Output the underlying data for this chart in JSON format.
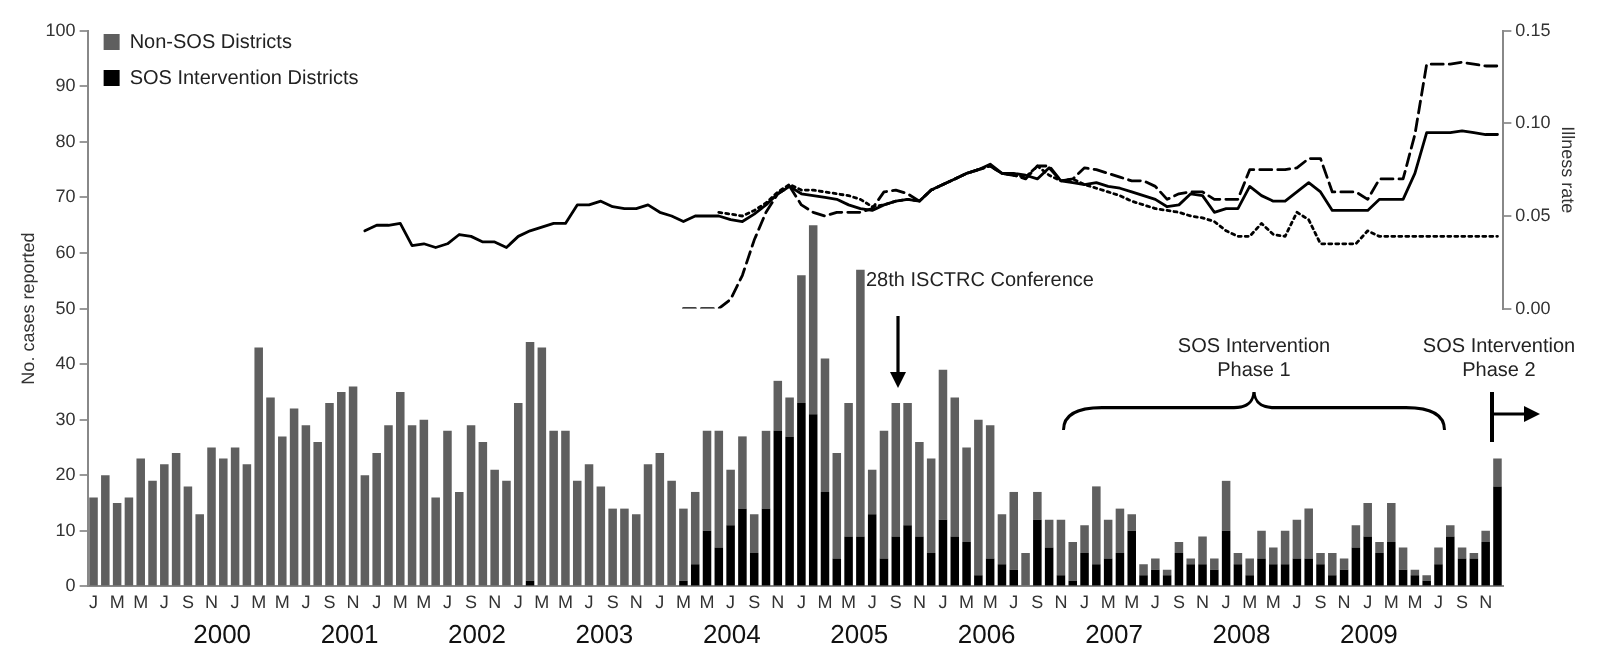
{
  "chart_data": {
    "type": "bar",
    "stacked": true,
    "ylabel": "No. cases reported",
    "y2label": "Illness rate",
    "categories": [
      "J",
      null,
      "M",
      null,
      "M",
      null,
      "J",
      null,
      "S",
      null,
      "N",
      null,
      "J",
      null,
      "M",
      null,
      "M",
      null,
      "J",
      null,
      "S",
      null,
      "N",
      null,
      "J",
      null,
      "M",
      null,
      "M",
      null,
      "J",
      null,
      "S",
      null,
      "N",
      null,
      "J",
      null,
      "M",
      null,
      "M",
      null,
      "J",
      null,
      "S",
      null,
      "N",
      null,
      "J",
      null,
      "M",
      null,
      "M",
      null,
      "J",
      null,
      "S",
      null,
      "N",
      null,
      "J",
      null,
      "M",
      null,
      "M",
      null,
      "J",
      null,
      "S",
      null,
      "N",
      null,
      "J",
      null,
      "M",
      null,
      "M",
      null,
      "J",
      null,
      "S",
      null,
      "N",
      null,
      "J",
      null,
      "M",
      null,
      "M",
      null,
      "J",
      null,
      "S",
      null,
      "N",
      null,
      "J",
      null,
      "M",
      null,
      "M",
      null,
      "J",
      null,
      "S",
      null,
      "N",
      null,
      "J",
      null,
      "M",
      null,
      "M",
      null,
      "J",
      null,
      "S",
      null,
      "N",
      null
    ],
    "ylim": [
      0,
      100
    ],
    "yticks": [
      0,
      10,
      20,
      30,
      40,
      50,
      60,
      70,
      80,
      90,
      100
    ],
    "y2lim": [
      0,
      0.15
    ],
    "y2ticks": [
      {
        "value": 0,
        "label": "0.00"
      },
      {
        "value": 0.05,
        "label": "0.05"
      },
      {
        "value": 0.1,
        "label": "0.10"
      },
      {
        "value": 0.15,
        "label": "0.15"
      }
    ],
    "x2lim": [
      2000,
      2010
    ],
    "x2ticks": [
      {
        "value": 2000.5,
        "label": "2000"
      },
      {
        "value": 2001.5,
        "label": "2001"
      },
      {
        "value": 2002.5,
        "label": "2002"
      },
      {
        "value": 2003.5,
        "label": "2003"
      },
      {
        "value": 2004.5,
        "label": "2004"
      },
      {
        "value": 2005.5,
        "label": "2005"
      },
      {
        "value": 2006.5,
        "label": "2006"
      },
      {
        "value": 2007.5,
        "label": "2007"
      },
      {
        "value": 2008.5,
        "label": "2008"
      },
      {
        "value": 2009.5,
        "label": "2009"
      }
    ],
    "legend": "top left",
    "grid": false,
    "marker": "none",
    "annotations": [
      "28th ISCTRC Conference",
      "SOS Intervention Phase 1",
      "SOS Intervention Phase 2"
    ],
    "series": [
      {
        "name": "SOS Intervention Districts",
        "color": "#000000",
        "values": [
          0,
          0,
          0,
          0,
          0,
          0,
          0,
          0,
          0,
          0,
          0,
          0,
          0,
          0,
          0,
          0,
          0,
          0,
          0,
          0,
          0,
          0,
          0,
          0,
          0,
          0,
          0,
          0,
          0,
          0,
          0,
          0,
          0,
          0,
          0,
          0,
          0,
          1,
          0,
          0,
          0,
          0,
          0,
          0,
          0,
          0,
          0,
          0,
          0,
          0,
          1,
          4,
          10,
          7,
          11,
          14,
          6,
          14,
          28,
          27,
          33,
          31,
          17,
          5,
          9,
          9,
          13,
          5,
          9,
          11,
          9,
          6,
          12,
          9,
          8,
          2,
          5,
          4,
          3,
          0,
          12,
          7,
          2,
          1,
          6,
          4,
          5,
          6,
          10,
          2,
          3,
          2,
          6,
          4,
          4,
          3,
          10,
          4,
          2,
          5,
          4,
          4,
          5,
          5,
          4,
          2,
          3,
          7,
          9,
          6,
          8,
          3,
          2,
          1,
          4,
          9,
          5,
          5,
          8,
          18
        ]
      },
      {
        "name": "Non-SOS Districts",
        "color": "#5f5f5f",
        "values": [
          16,
          20,
          15,
          16,
          23,
          19,
          22,
          24,
          18,
          13,
          25,
          23,
          25,
          22,
          43,
          34,
          27,
          32,
          29,
          26,
          33,
          35,
          36,
          20,
          24,
          29,
          35,
          29,
          30,
          16,
          28,
          17,
          29,
          26,
          21,
          19,
          33,
          43,
          43,
          28,
          28,
          19,
          22,
          18,
          14,
          14,
          13,
          22,
          24,
          19,
          13,
          13,
          18,
          21,
          10,
          13,
          7,
          14,
          9,
          7,
          23,
          34,
          24,
          19,
          24,
          48,
          8,
          23,
          24,
          22,
          17,
          17,
          27,
          25,
          17,
          28,
          24,
          9,
          14,
          6,
          5,
          5,
          10,
          7,
          5,
          14,
          7,
          8,
          3,
          2,
          2,
          1,
          2,
          1,
          5,
          2,
          9,
          2,
          3,
          5,
          3,
          6,
          7,
          9,
          2,
          4,
          2,
          4,
          6,
          2,
          7,
          4,
          1,
          1,
          3,
          2,
          2,
          1,
          2,
          5
        ]
      },
      {
        "type": "line",
        "axis": "y2",
        "color": "#000000",
        "line_style": "solid",
        "values": [
          null,
          null,
          null,
          null,
          null,
          null,
          null,
          null,
          null,
          null,
          null,
          null,
          null,
          null,
          null,
          null,
          null,
          null,
          null,
          null,
          null,
          null,
          null,
          0.042,
          0.045,
          0.045,
          0.046,
          0.034,
          0.035,
          0.033,
          0.035,
          0.04,
          0.039,
          0.036,
          0.036,
          0.033,
          0.039,
          0.042,
          0.044,
          0.046,
          0.046,
          0.056,
          0.056,
          0.058,
          0.055,
          0.054,
          0.054,
          0.056,
          0.052,
          0.05,
          0.047,
          0.05,
          0.05,
          0.05,
          0.048,
          0.047,
          0.051,
          0.056,
          0.062,
          0.066,
          0.062,
          0.061,
          0.06,
          0.059,
          0.056,
          0.054,
          0.053,
          0.056,
          0.058,
          0.059,
          0.058,
          0.064,
          0.067,
          0.07,
          0.073,
          0.075,
          0.078,
          0.073,
          0.073,
          0.072,
          0.07,
          0.076,
          0.069,
          0.068,
          0.067,
          0.068,
          0.066,
          0.065,
          0.063,
          0.061,
          0.059,
          0.055,
          0.056,
          0.062,
          0.061,
          0.052,
          0.054,
          0.054,
          0.066,
          0.061,
          0.058,
          0.058,
          0.063,
          0.068,
          0.063,
          0.053,
          0.053,
          0.053,
          0.053,
          0.059,
          0.059,
          0.059,
          0.073,
          0.095,
          0.095,
          0.095,
          0.096,
          0.095,
          0.094,
          0.094
        ]
      },
      {
        "type": "line",
        "axis": "y2",
        "color": "#000000",
        "line_style": "dashed",
        "values": [
          null,
          null,
          null,
          null,
          null,
          null,
          null,
          null,
          null,
          null,
          null,
          null,
          null,
          null,
          null,
          null,
          null,
          null,
          null,
          null,
          null,
          null,
          null,
          null,
          null,
          null,
          null,
          null,
          null,
          null,
          null,
          null,
          null,
          null,
          null,
          null,
          null,
          null,
          null,
          null,
          null,
          null,
          null,
          null,
          null,
          null,
          null,
          null,
          null,
          null,
          0,
          0,
          0,
          0,
          0.005,
          0.018,
          0.037,
          0.052,
          0.062,
          0.066,
          0.056,
          0.052,
          0.05,
          0.052,
          0.052,
          0.052,
          0.054,
          0.063,
          0.064,
          0.062,
          0.058,
          0.064,
          0.067,
          0.07,
          0.073,
          0.075,
          0.077,
          0.073,
          0.072,
          0.07,
          0.077,
          0.077,
          0.069,
          0.07,
          0.076,
          0.075,
          0.073,
          0.071,
          0.069,
          0.069,
          0.066,
          0.059,
          0.062,
          0.063,
          0.063,
          0.059,
          0.059,
          0.059,
          0.075,
          0.075,
          0.075,
          0.075,
          0.076,
          0.081,
          0.081,
          0.063,
          0.063,
          0.063,
          0.059,
          0.07,
          0.07,
          0.07,
          0.094,
          0.132,
          0.132,
          0.132,
          0.133,
          0.132,
          0.131,
          0.131
        ]
      },
      {
        "type": "line",
        "axis": "y2",
        "color": "#000000",
        "line_style": "dotted",
        "values": [
          null,
          null,
          null,
          null,
          null,
          null,
          null,
          null,
          null,
          null,
          null,
          null,
          null,
          null,
          null,
          null,
          null,
          null,
          null,
          null,
          null,
          null,
          null,
          null,
          null,
          null,
          null,
          null,
          null,
          null,
          null,
          null,
          null,
          null,
          null,
          null,
          null,
          null,
          null,
          null,
          null,
          null,
          null,
          null,
          null,
          null,
          null,
          null,
          null,
          null,
          null,
          null,
          null,
          0.052,
          0.051,
          0.05,
          0.053,
          0.057,
          0.063,
          0.067,
          0.064,
          0.064,
          0.063,
          0.062,
          0.061,
          0.059,
          0.055,
          0.056,
          0.058,
          0.059,
          0.058,
          0.064,
          0.067,
          0.07,
          0.073,
          0.075,
          0.077,
          0.073,
          0.072,
          0.071,
          0.077,
          0.072,
          0.069,
          0.07,
          0.067,
          0.065,
          0.063,
          0.061,
          0.058,
          0.056,
          0.054,
          0.053,
          0.052,
          0.05,
          0.049,
          0.047,
          0.042,
          0.039,
          0.039,
          0.046,
          0.04,
          0.039,
          0.052,
          0.048,
          0.035,
          0.035,
          0.035,
          0.035,
          0.042,
          0.039,
          0.039,
          0.039,
          0.039,
          0.039,
          0.039,
          0.039,
          0.039,
          0.039,
          0.039,
          0.039
        ]
      }
    ]
  }
}
